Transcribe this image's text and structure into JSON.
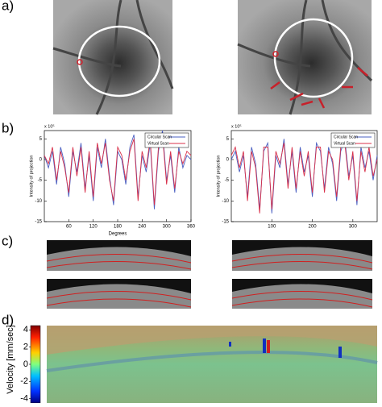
{
  "panel_labels": [
    "a)",
    "b)",
    "c)",
    "d)"
  ],
  "chart_data": [
    {
      "type": "line",
      "ylabel": "Intensity of projection",
      "xlabel": "Degrees",
      "y_exponent_label": "x 10⁵",
      "x": [
        0,
        10,
        20,
        30,
        40,
        50,
        60,
        70,
        80,
        90,
        100,
        110,
        120,
        130,
        140,
        150,
        160,
        170,
        180,
        190,
        200,
        210,
        220,
        230,
        240,
        250,
        260,
        270,
        280,
        290,
        300,
        310,
        320,
        330,
        340,
        350,
        360
      ],
      "series": [
        {
          "name": "Circular Scan",
          "color": "#4a5fc1",
          "values": [
            1,
            -2,
            2,
            -6,
            3,
            -1,
            -9,
            2,
            -3,
            4,
            -7,
            1,
            -10,
            3,
            -2,
            5,
            -4,
            -11,
            2,
            0,
            -6,
            3,
            6,
            -9,
            1,
            -3,
            4,
            -12,
            2,
            7,
            -5,
            1,
            -8,
            3,
            -2,
            1,
            0
          ]
        },
        {
          "name": "Virtual Scan",
          "color": "#d9304a",
          "values": [
            1,
            -1,
            3,
            -5,
            2,
            -2,
            -8,
            3,
            -4,
            3,
            -8,
            2,
            -9,
            4,
            -1,
            4,
            -5,
            -10,
            3,
            1,
            -5,
            2,
            5,
            -10,
            2,
            -2,
            5,
            -11,
            3,
            6,
            -6,
            2,
            -7,
            2,
            -1,
            2,
            1
          ]
        }
      ],
      "xlim": [
        0,
        360
      ],
      "xticks": [
        60,
        120,
        180,
        240,
        300,
        360
      ],
      "ylim": [
        -15,
        7
      ],
      "yticks": [
        5,
        0,
        -5,
        -10,
        -15
      ],
      "legend": "upper right"
    },
    {
      "type": "line",
      "ylabel": "Intensity of projection",
      "y_exponent_label": "x 10⁵",
      "x": [
        0,
        10,
        20,
        30,
        40,
        50,
        60,
        70,
        80,
        90,
        100,
        110,
        120,
        130,
        140,
        150,
        160,
        170,
        180,
        190,
        200,
        210,
        220,
        230,
        240,
        250,
        260,
        270,
        280,
        290,
        300,
        310,
        320,
        330,
        340,
        350,
        360
      ],
      "series": [
        {
          "name": "Circular Scan",
          "color": "#4a5fc1",
          "values": [
            0,
            2,
            -3,
            1,
            -9,
            3,
            -1,
            -12,
            2,
            4,
            -13,
            1,
            -2,
            5,
            -6,
            2,
            -8,
            3,
            -3,
            1,
            -9,
            4,
            2,
            -7,
            3,
            -1,
            -10,
            2,
            5,
            -4,
            1,
            -11,
            3,
            -2,
            2,
            -5,
            1
          ]
        },
        {
          "name": "Virtual Scan",
          "color": "#d9304a",
          "values": [
            1,
            3,
            -2,
            2,
            -10,
            2,
            -2,
            -13,
            3,
            3,
            -12,
            2,
            -1,
            4,
            -7,
            3,
            -7,
            2,
            -4,
            2,
            -8,
            3,
            3,
            -8,
            2,
            0,
            -9,
            3,
            4,
            -5,
            2,
            -10,
            2,
            -3,
            3,
            -4,
            0
          ]
        }
      ],
      "xlim": [
        0,
        360
      ],
      "xticks": [
        100,
        200,
        300
      ],
      "ylim": [
        -15,
        7
      ],
      "yticks": [
        5,
        0,
        -5,
        -10,
        -15
      ],
      "legend": "upper right"
    },
    {
      "type": "colorbar",
      "ylabel": "Velocity [mm/sec]",
      "ylim": [
        -4.5,
        4.5
      ],
      "yticks": [
        4,
        2,
        0,
        -2,
        -4
      ]
    }
  ]
}
